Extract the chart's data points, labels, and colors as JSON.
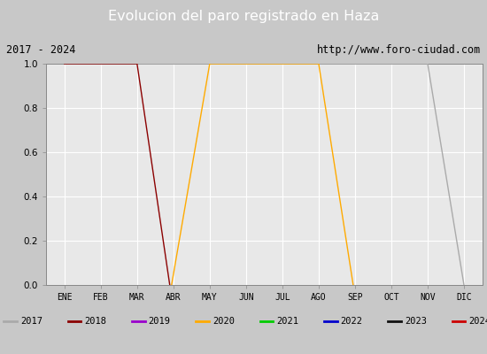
{
  "title": "Evolucion del paro registrado en Haza",
  "subtitle_left": "2017 - 2024",
  "subtitle_right": "http://www.foro-ciudad.com",
  "ylim": [
    0.0,
    1.0
  ],
  "outer_bg": "#c8c8c8",
  "plot_bg": "#e8e8e8",
  "title_bg": "#5588cc",
  "title_color": "white",
  "subtitle_bg": "white",
  "legend_bg": "#d8d8d8",
  "months": [
    "ENE",
    "FEB",
    "MAR",
    "ABR",
    "MAY",
    "JUN",
    "JUL",
    "AGO",
    "SEP",
    "OCT",
    "NOV",
    "DIC"
  ],
  "series_order": [
    "2017",
    "2018",
    "2019",
    "2020",
    "2021",
    "2022",
    "2023",
    "2024"
  ],
  "series": {
    "2017": {
      "color": "#aaaaaa",
      "lw": 1.0,
      "x": [
        1,
        2,
        3,
        4,
        5,
        6,
        7,
        8,
        9,
        10,
        11,
        12
      ],
      "y": [
        1.0,
        1.0,
        1.0,
        1.0,
        1.0,
        1.0,
        1.0,
        1.0,
        1.0,
        1.0,
        1.0,
        0.0
      ]
    },
    "2018": {
      "color": "#8b0000",
      "lw": 1.0,
      "x": [
        1,
        2,
        3,
        3.9
      ],
      "y": [
        1.0,
        1.0,
        1.0,
        0.0
      ]
    },
    "2019": {
      "color": "#9900cc",
      "lw": 1.0,
      "x": [
        1
      ],
      "y": [
        0.0
      ]
    },
    "2020": {
      "color": "#ffaa00",
      "lw": 1.0,
      "x": [
        3.95,
        5,
        6,
        7,
        8,
        8.95
      ],
      "y": [
        0.0,
        1.0,
        1.0,
        1.0,
        1.0,
        0.0
      ]
    },
    "2021": {
      "color": "#00cc00",
      "lw": 1.0,
      "x": [
        1
      ],
      "y": [
        0.0
      ]
    },
    "2022": {
      "color": "#0000cc",
      "lw": 1.0,
      "x": [
        1
      ],
      "y": [
        0.0
      ]
    },
    "2023": {
      "color": "#111111",
      "lw": 1.0,
      "x": [
        1
      ],
      "y": [
        0.0
      ]
    },
    "2024": {
      "color": "#cc0000",
      "lw": 1.0,
      "x": [
        1
      ],
      "y": [
        0.0
      ]
    }
  },
  "legend_colors": {
    "2017": "#aaaaaa",
    "2018": "#8b0000",
    "2019": "#9900cc",
    "2020": "#ffaa00",
    "2021": "#00cc00",
    "2022": "#0000cc",
    "2023": "#111111",
    "2024": "#cc0000"
  }
}
